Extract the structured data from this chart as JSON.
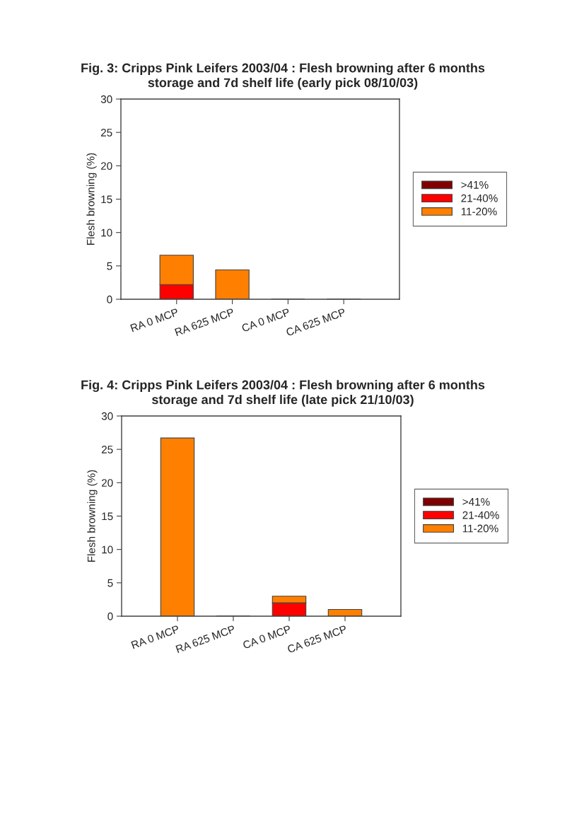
{
  "chart_data": [
    {
      "type": "bar",
      "title": "Fig. 3: Cripps Pink Leifers 2003/04 : Flesh browning after 6 months\nstorage and 7d shelf life (early pick 08/10/03)",
      "ylabel": "Flesh browning (%)",
      "categories": [
        "RA 0 MCP",
        "RA 625 MCP",
        "CA 0 MCP",
        "CA 625 MCP"
      ],
      "stacked": true,
      "ylim": [
        0,
        30
      ],
      "yticks": [
        0,
        5,
        10,
        15,
        20,
        25,
        30
      ],
      "grid": false,
      "legend": "right",
      "series": [
        {
          "name": ">41%",
          "color": "#800000",
          "values": [
            0,
            0,
            0,
            0
          ]
        },
        {
          "name": "21-40%",
          "color": "#ff0000",
          "values": [
            2.2,
            0,
            0,
            0
          ]
        },
        {
          "name": "11-20%",
          "color": "#ff8000",
          "values": [
            4.4,
            4.4,
            0,
            0
          ]
        }
      ]
    },
    {
      "type": "bar",
      "title": "Fig. 4: Cripps Pink Leifers 2003/04 : Flesh browning after 6 months\nstorage and 7d shelf life (late pick 21/10/03)",
      "ylabel": "Flesh browning (%)",
      "categories": [
        "RA 0 MCP",
        "RA 625 MCP",
        "CA 0 MCP",
        "CA 625 MCP"
      ],
      "stacked": true,
      "ylim": [
        0,
        30
      ],
      "yticks": [
        0,
        5,
        10,
        15,
        20,
        25,
        30
      ],
      "grid": false,
      "legend": "right",
      "series": [
        {
          "name": ">41%",
          "color": "#800000",
          "values": [
            0,
            0,
            0,
            0
          ]
        },
        {
          "name": "21-40%",
          "color": "#ff0000",
          "values": [
            0,
            0,
            2.0,
            0
          ]
        },
        {
          "name": "11-20%",
          "color": "#ff8000",
          "values": [
            26.7,
            0,
            1.0,
            1.0
          ]
        }
      ]
    }
  ]
}
